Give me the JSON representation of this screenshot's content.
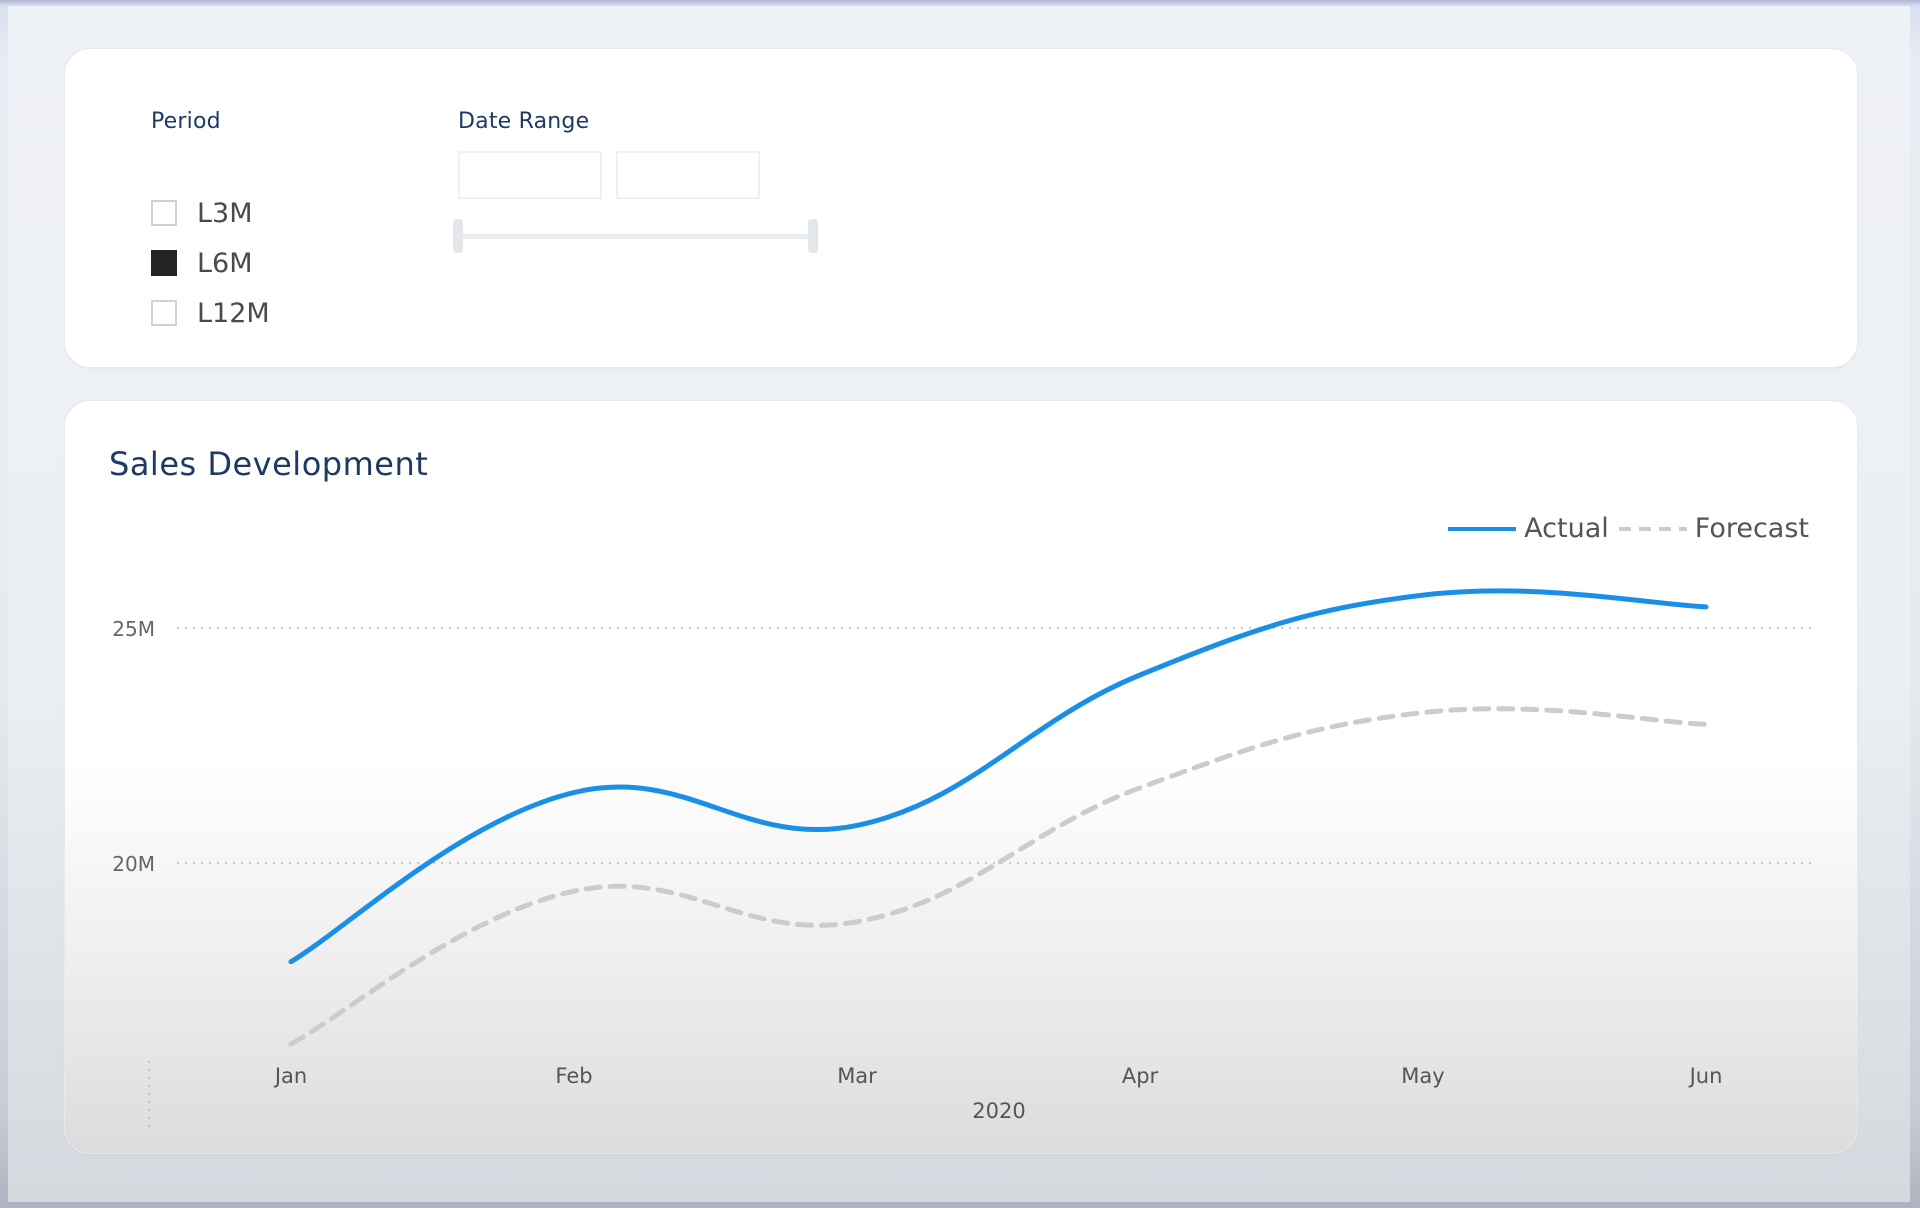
{
  "filters": {
    "period": {
      "title": "Period",
      "options": [
        {
          "label": "L3M",
          "checked": false
        },
        {
          "label": "L6M",
          "checked": true
        },
        {
          "label": "L12M",
          "checked": false
        }
      ]
    },
    "date_range": {
      "title": "Date Range",
      "start_value": "",
      "end_value": ""
    }
  },
  "colors": {
    "title": "#1e3a64",
    "actual": "#1b8fe6",
    "forecast": "#cccccc",
    "checkbox_checked": "#232323"
  },
  "chart_data": {
    "type": "line",
    "title": "Sales Development",
    "categories": [
      "Jan",
      "Feb",
      "Mar",
      "Apr",
      "May",
      "Jun"
    ],
    "x_group_label": "2020",
    "xlabel": "",
    "ylabel": "",
    "y_ticks": [
      20000000,
      25000000
    ],
    "y_tick_labels": [
      "20M",
      "25M"
    ],
    "ylim": [
      15500000,
      27000000
    ],
    "grid": "horizontal dotted",
    "legend_position": "top-right",
    "series": [
      {
        "name": "Actual",
        "style": "solid",
        "values": [
          17900000,
          21500000,
          20800000,
          24000000,
          25700000,
          25450000
        ]
      },
      {
        "name": "Forecast",
        "style": "dashed",
        "values": [
          16150000,
          19400000,
          18750000,
          21600000,
          23200000,
          22950000
        ]
      }
    ]
  }
}
